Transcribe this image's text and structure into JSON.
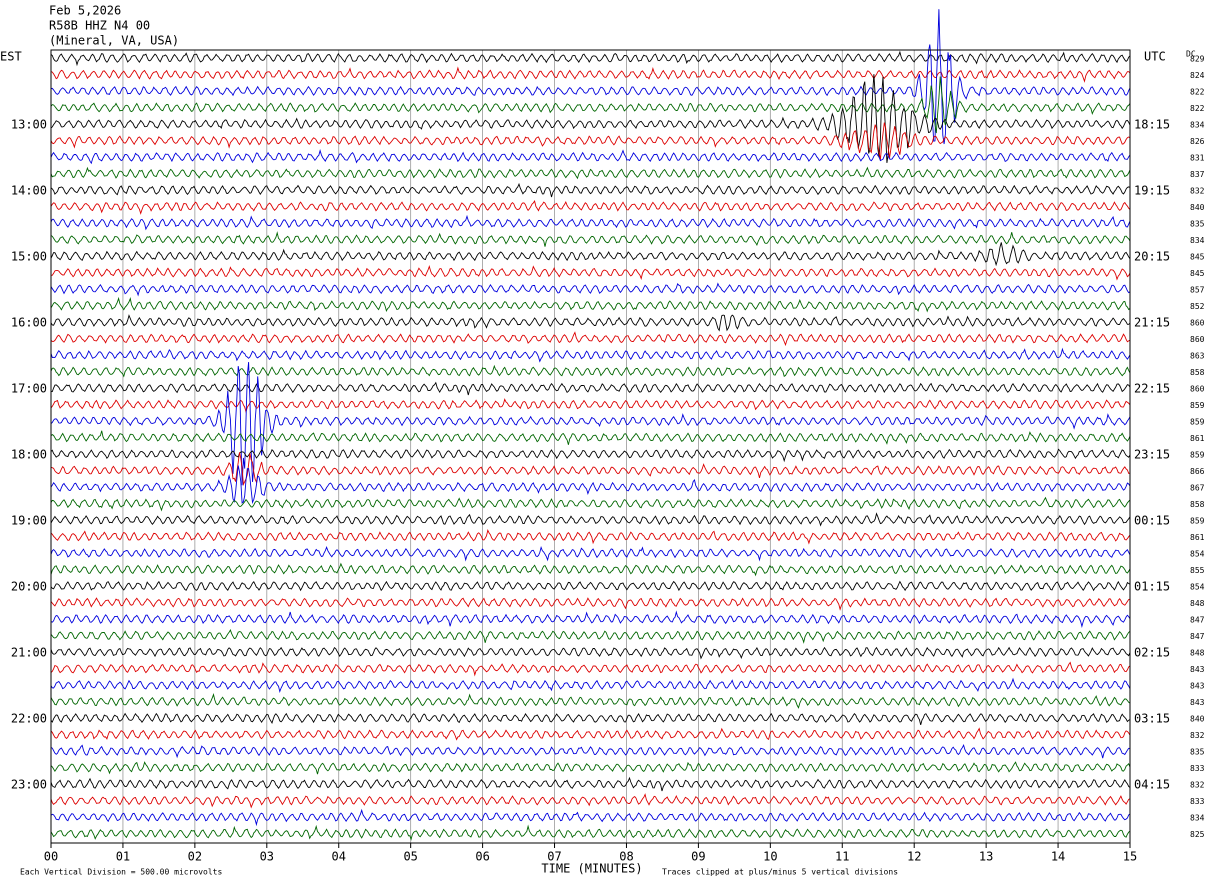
{
  "header": {
    "date": "Feb 5,2026",
    "station": "R58B HHZ N4 00",
    "location": "(Mineral, VA, USA)"
  },
  "left_axis_title": "EST",
  "right_axis_title": "UTC",
  "dc_title": "DC",
  "left_labels": [
    "13:00",
    "14:00",
    "15:00",
    "16:00",
    "17:00",
    "18:00",
    "19:00",
    "20:00",
    "21:00",
    "22:00",
    "23:00"
  ],
  "right_labels": [
    "18:15",
    "19:15",
    "20:15",
    "21:15",
    "22:15",
    "23:15",
    "00:15",
    "01:15",
    "02:15",
    "03:15",
    "04:15"
  ],
  "dc_values": [
    "829",
    "824",
    "822",
    "822",
    "834",
    "826",
    "831",
    "837",
    "832",
    "840",
    "835",
    "834",
    "845",
    "845",
    "857",
    "852",
    "860",
    "860",
    "863",
    "858",
    "860",
    "859",
    "859",
    "861",
    "859",
    "866",
    "867",
    "858",
    "859",
    "861",
    "854",
    "855",
    "854",
    "848",
    "847",
    "847",
    "848",
    "843",
    "843",
    "843",
    "840",
    "832",
    "835",
    "833",
    "832",
    "833",
    "834",
    "825"
  ],
  "x_ticks": [
    "00",
    "01",
    "02",
    "03",
    "04",
    "05",
    "06",
    "07",
    "08",
    "09",
    "10",
    "11",
    "12",
    "13",
    "14",
    "15"
  ],
  "x_axis_title": "TIME (MINUTES)",
  "footer": {
    "scale": "Each Vertical Division =  500.00 microvolts",
    "clip": "Traces clipped at plus/minus 5 vertical divisions"
  }
}
